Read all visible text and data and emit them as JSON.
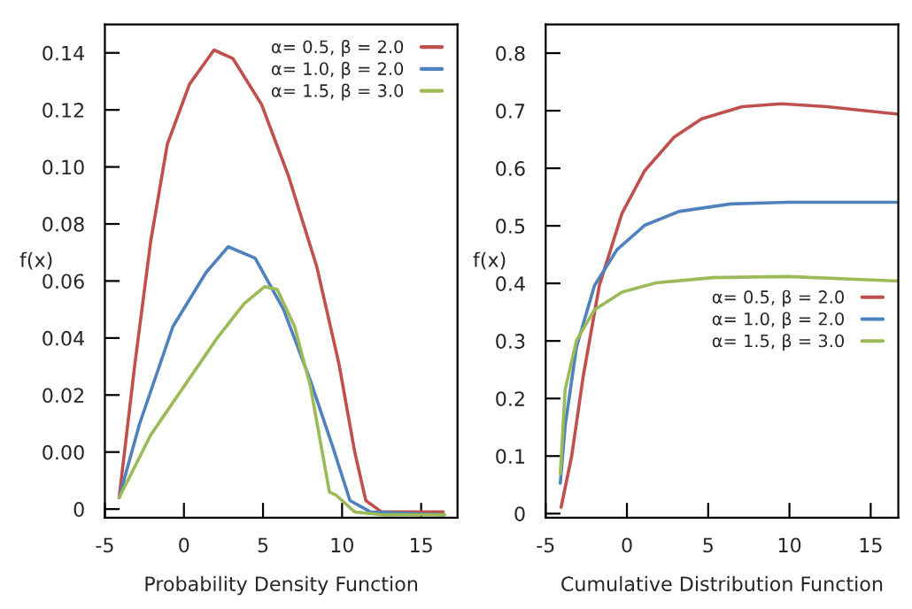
{
  "chart_data": [
    {
      "type": "line",
      "xlabel": "Probability Density Function",
      "ylabel": "f(x)",
      "xlim": [
        -5,
        17.3
      ],
      "ylim": [
        -0.023,
        0.15
      ],
      "xticks": [
        -5,
        0,
        5,
        10,
        15
      ],
      "yticks": [
        {
          "value": -0.02,
          "label": "0"
        },
        {
          "value": 0.0,
          "label": "0.00"
        },
        {
          "value": 0.02,
          "label": "0.02"
        },
        {
          "value": 0.04,
          "label": "0.04"
        },
        {
          "value": 0.06,
          "label": "0.06"
        },
        {
          "value": 0.08,
          "label": "0.08"
        },
        {
          "value": 0.1,
          "label": "0.10"
        },
        {
          "value": 0.12,
          "label": "0.12"
        },
        {
          "value": 0.14,
          "label": "0.14"
        }
      ],
      "grid": false,
      "legend": "top right",
      "marker": "none",
      "line_style": "solid",
      "series": [
        {
          "name": "α= 0.5, β = 2.0",
          "color": "#c0504d",
          "x": [
            -4.1,
            -3.1,
            -2.1,
            -1.05,
            0.35,
            1.9,
            3.1,
            4.9,
            6.6,
            8.4,
            9.8,
            10.8,
            11.5,
            12.5,
            16.4
          ],
          "values": [
            -0.016,
            0.031,
            0.074,
            0.108,
            0.129,
            0.141,
            0.138,
            0.122,
            0.097,
            0.065,
            0.031,
            0.0,
            -0.017,
            -0.021,
            -0.021
          ]
        },
        {
          "name": "α= 1.0, β = 2.0",
          "color": "#4f81bd",
          "x": [
            -4.1,
            -2.8,
            -0.7,
            1.4,
            2.8,
            4.5,
            6.3,
            8.0,
            9.4,
            10.5,
            11.8,
            16.4
          ],
          "values": [
            -0.016,
            0.01,
            0.044,
            0.063,
            0.072,
            0.068,
            0.05,
            0.025,
            0.002,
            -0.017,
            -0.021,
            -0.022
          ]
        },
        {
          "name": "α= 1.5, β = 3.0",
          "color": "#9bbb59",
          "x": [
            -4.1,
            -2.1,
            0.0,
            2.1,
            3.8,
            5.1,
            5.9,
            7.0,
            8.0,
            9.2,
            9.6,
            10.8,
            12.5,
            16.5
          ],
          "values": [
            -0.016,
            0.006,
            0.023,
            0.04,
            0.052,
            0.058,
            0.057,
            0.044,
            0.023,
            -0.014,
            -0.015,
            -0.021,
            -0.022,
            -0.022
          ]
        }
      ]
    },
    {
      "type": "line",
      "xlabel": "Cumulative Distribution Function",
      "ylabel": "f(x)",
      "xlim": [
        -5,
        16.7
      ],
      "ylim": [
        -0.007,
        0.85
      ],
      "xticks": [
        -5,
        0,
        5,
        10,
        15
      ],
      "yticks": [
        {
          "value": 0,
          "label": "0"
        },
        0.1,
        0.2,
        0.3,
        0.4,
        0.5,
        0.6,
        0.7,
        0.8
      ],
      "grid": false,
      "legend": "right",
      "marker": "none",
      "line_style": "solid",
      "series": [
        {
          "name": "α= 0.5, β = 2.0",
          "color": "#c0504d",
          "x": [
            -4.05,
            -3.4,
            -2.7,
            -1.7,
            -0.3,
            1.1,
            2.9,
            4.6,
            7.1,
            9.5,
            12.3,
            16.7
          ],
          "values": [
            0.011,
            0.1,
            0.237,
            0.396,
            0.522,
            0.596,
            0.654,
            0.686,
            0.707,
            0.712,
            0.707,
            0.694
          ]
        },
        {
          "name": "α= 1.0, β = 2.0",
          "color": "#4f81bd",
          "x": [
            -4.1,
            -3.8,
            -3.1,
            -2.0,
            -0.6,
            1.1,
            3.2,
            6.4,
            9.9,
            16.7
          ],
          "values": [
            0.053,
            0.153,
            0.29,
            0.396,
            0.459,
            0.501,
            0.525,
            0.538,
            0.541,
            0.541
          ]
        },
        {
          "name": "α= 1.5, β = 3.0",
          "color": "#9bbb59",
          "x": [
            -4.1,
            -3.8,
            -3.1,
            -2.0,
            -0.3,
            1.8,
            5.3,
            9.9,
            16.7
          ],
          "values": [
            0.069,
            0.216,
            0.301,
            0.354,
            0.385,
            0.401,
            0.41,
            0.412,
            0.404
          ]
        }
      ]
    }
  ]
}
